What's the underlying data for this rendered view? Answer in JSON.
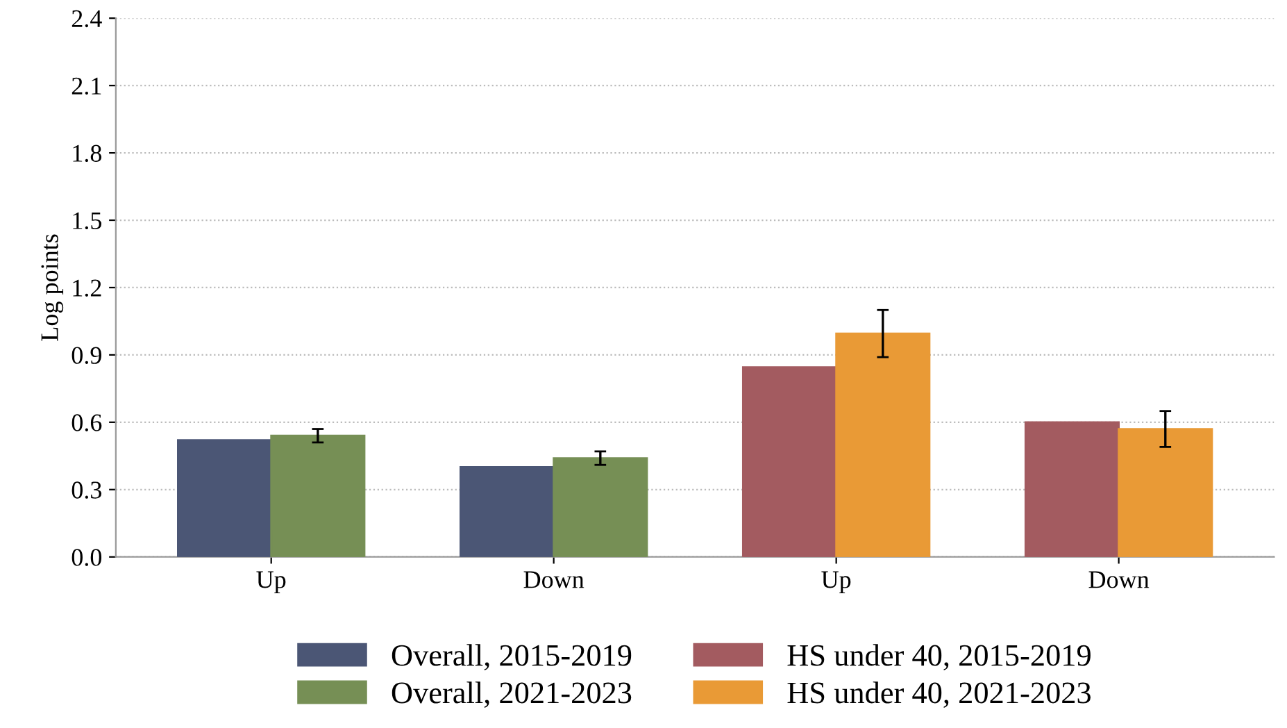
{
  "chart_data": {
    "type": "bar",
    "ylabel": "Log points",
    "categories": [
      "Up",
      "Down",
      "Up",
      "Down"
    ],
    "series": [
      {
        "name": "Overall, 2015-2019",
        "color": "#4b5675",
        "values": [
          0.52,
          0.4,
          null,
          null
        ]
      },
      {
        "name": "Overall, 2021-2023",
        "color": "#768f55",
        "values": [
          0.54,
          0.44,
          null,
          null
        ],
        "errors": [
          [
            0.51,
            0.57
          ],
          [
            0.41,
            0.47
          ],
          null,
          null
        ]
      },
      {
        "name": "HS under 40, 2015-2019",
        "color": "#a35b60",
        "values": [
          null,
          null,
          0.845,
          0.6
        ]
      },
      {
        "name": "HS under 40, 2021-2023",
        "color": "#e99a36",
        "values": [
          null,
          null,
          0.995,
          0.57
        ],
        "errors": [
          null,
          null,
          [
            0.89,
            1.1
          ],
          [
            0.49,
            0.65
          ]
        ]
      }
    ],
    "ylim": [
      0,
      2.4
    ],
    "yticks": [
      {
        "value": 0,
        "label": "0.0"
      },
      0.3,
      0.6,
      0.9,
      1.2,
      1.5,
      1.8,
      2.1,
      2.4
    ],
    "grid": "y",
    "legend": "bottom"
  }
}
